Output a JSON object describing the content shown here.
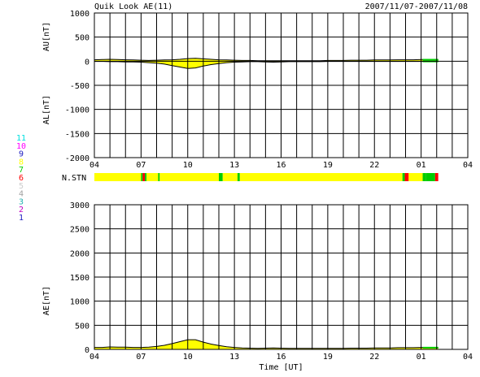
{
  "header": {
    "title": "Quik Look AE(11)",
    "date_range": "2007/11/07-2007/11/08"
  },
  "stn_legend": {
    "label": "N.STN",
    "levels": [
      {
        "value": "11",
        "color": "#00e0e0"
      },
      {
        "value": "10",
        "color": "#ff00ff"
      },
      {
        "value": "9",
        "color": "#2020c0"
      },
      {
        "value": "8",
        "color": "#ffff00"
      },
      {
        "value": "7",
        "color": "#00cc00"
      },
      {
        "value": "6",
        "color": "#ff0000"
      },
      {
        "value": "5",
        "color": "#cccccc"
      },
      {
        "value": "4",
        "color": "#a0a0a0"
      },
      {
        "value": "3",
        "color": "#20b0b0"
      },
      {
        "value": "2",
        "color": "#c000c0"
      },
      {
        "value": "1",
        "color": "#2020c0"
      }
    ]
  },
  "chart_data": [
    {
      "type": "area",
      "panel": "AU/AL",
      "ylabel_top": "AU[nT]",
      "ylabel_bottom": "AL[nT]",
      "ylim": [
        -2000,
        1000
      ],
      "yticks": [
        "1000",
        "500",
        "0",
        "-500",
        "-1000",
        "-1500",
        "-2000"
      ],
      "xticks": [
        "04",
        "07",
        "10",
        "13",
        "16",
        "19",
        "22",
        "01",
        "04"
      ],
      "xlim_hours": [
        0,
        24
      ],
      "data_end_hour": 22.1,
      "grid": true,
      "series": [
        {
          "key": "AU",
          "x": [
            0,
            0.5,
            1,
            1.5,
            2,
            2.5,
            3,
            3.5,
            4,
            4.5,
            5,
            5.5,
            6,
            6.5,
            7,
            7.5,
            8,
            8.5,
            9,
            9.5,
            10,
            10.5,
            11,
            11.5,
            12,
            12.5,
            13,
            13.5,
            14,
            14.5,
            15,
            15.5,
            16,
            16.5,
            17,
            17.5,
            18,
            18.5,
            19,
            19.5,
            20,
            20.5,
            21,
            21.5,
            22,
            22.1
          ],
          "values": [
            30,
            35,
            40,
            35,
            30,
            25,
            20,
            15,
            20,
            25,
            30,
            40,
            55,
            60,
            50,
            40,
            30,
            25,
            20,
            15,
            15,
            10,
            10,
            10,
            10,
            10,
            10,
            10,
            10,
            10,
            15,
            15,
            15,
            20,
            20,
            20,
            25,
            25,
            25,
            30,
            30,
            30,
            35,
            35,
            30,
            30
          ]
        },
        {
          "key": "AL",
          "x": [
            0,
            0.5,
            1,
            1.5,
            2,
            2.5,
            3,
            3.5,
            4,
            4.5,
            5,
            5.5,
            6,
            6.5,
            7,
            7.5,
            8,
            8.5,
            9,
            9.5,
            10,
            10.5,
            11,
            11.5,
            12,
            12.5,
            13,
            13.5,
            14,
            14.5,
            15,
            15.5,
            16,
            16.5,
            17,
            17.5,
            18,
            18.5,
            19,
            19.5,
            20,
            20.5,
            21,
            21.5,
            22,
            22.1
          ],
          "values": [
            -5,
            -5,
            -10,
            -10,
            -15,
            -15,
            -20,
            -30,
            -40,
            -60,
            -90,
            -120,
            -150,
            -140,
            -100,
            -70,
            -50,
            -30,
            -20,
            -15,
            -10,
            -10,
            -15,
            -20,
            -15,
            -10,
            -10,
            -10,
            -10,
            -10,
            -5,
            -5,
            -5,
            -5,
            -5,
            -5,
            -5,
            -5,
            -5,
            -5,
            -5,
            -5,
            -5,
            -5,
            -5,
            -5
          ]
        }
      ],
      "colors": {
        "fill": "#ffff00",
        "line": "#000000",
        "tail": "#00cc00"
      }
    },
    {
      "type": "bar",
      "panel": "N.STN",
      "label": "N.STN",
      "segments": [
        {
          "start": 0,
          "end": 3.0,
          "level": "8"
        },
        {
          "start": 3.0,
          "end": 3.1,
          "level": "7"
        },
        {
          "start": 3.1,
          "end": 3.25,
          "level": "6"
        },
        {
          "start": 3.25,
          "end": 3.35,
          "level": "7"
        },
        {
          "start": 3.35,
          "end": 4.1,
          "level": "8"
        },
        {
          "start": 4.1,
          "end": 4.2,
          "level": "7"
        },
        {
          "start": 4.2,
          "end": 8.0,
          "level": "8"
        },
        {
          "start": 8.0,
          "end": 8.25,
          "level": "7"
        },
        {
          "start": 8.25,
          "end": 9.2,
          "level": "8"
        },
        {
          "start": 9.2,
          "end": 9.35,
          "level": "7"
        },
        {
          "start": 9.35,
          "end": 19.8,
          "level": "8"
        },
        {
          "start": 19.8,
          "end": 19.95,
          "level": "7"
        },
        {
          "start": 19.95,
          "end": 20.2,
          "level": "6"
        },
        {
          "start": 20.2,
          "end": 21.1,
          "level": "8"
        },
        {
          "start": 21.1,
          "end": 21.3,
          "level": "7"
        },
        {
          "start": 21.3,
          "end": 21.9,
          "level": "7"
        },
        {
          "start": 21.9,
          "end": 22.1,
          "level": "6"
        }
      ]
    },
    {
      "type": "area",
      "panel": "AE",
      "ylabel": "AE[nT]",
      "xlabel": "Time [UT]",
      "ylim": [
        0,
        3000
      ],
      "yticks": [
        "3000",
        "2500",
        "2000",
        "1500",
        "1000",
        "500",
        "0"
      ],
      "xticks": [
        "04",
        "07",
        "10",
        "13",
        "16",
        "19",
        "22",
        "01",
        "04"
      ],
      "xlim_hours": [
        0,
        24
      ],
      "data_end_hour": 22.1,
      "grid": true,
      "series": [
        {
          "key": "AE",
          "x": [
            0,
            0.5,
            1,
            1.5,
            2,
            2.5,
            3,
            3.5,
            4,
            4.5,
            5,
            5.5,
            6,
            6.5,
            7,
            7.5,
            8,
            8.5,
            9,
            9.5,
            10,
            10.5,
            11,
            11.5,
            12,
            12.5,
            13,
            13.5,
            14,
            14.5,
            15,
            15.5,
            16,
            16.5,
            17,
            17.5,
            18,
            18.5,
            19,
            19.5,
            20,
            20.5,
            21,
            21.5,
            22,
            22.1
          ],
          "values": [
            40,
            40,
            50,
            45,
            45,
            40,
            40,
            45,
            60,
            85,
            120,
            160,
            200,
            200,
            150,
            110,
            80,
            55,
            40,
            30,
            25,
            20,
            25,
            30,
            25,
            20,
            20,
            20,
            20,
            20,
            20,
            20,
            20,
            25,
            25,
            25,
            30,
            30,
            30,
            35,
            35,
            35,
            40,
            40,
            35,
            35
          ]
        }
      ],
      "colors": {
        "fill": "#ffff00",
        "line": "#000000",
        "tail": "#00cc00"
      }
    }
  ]
}
